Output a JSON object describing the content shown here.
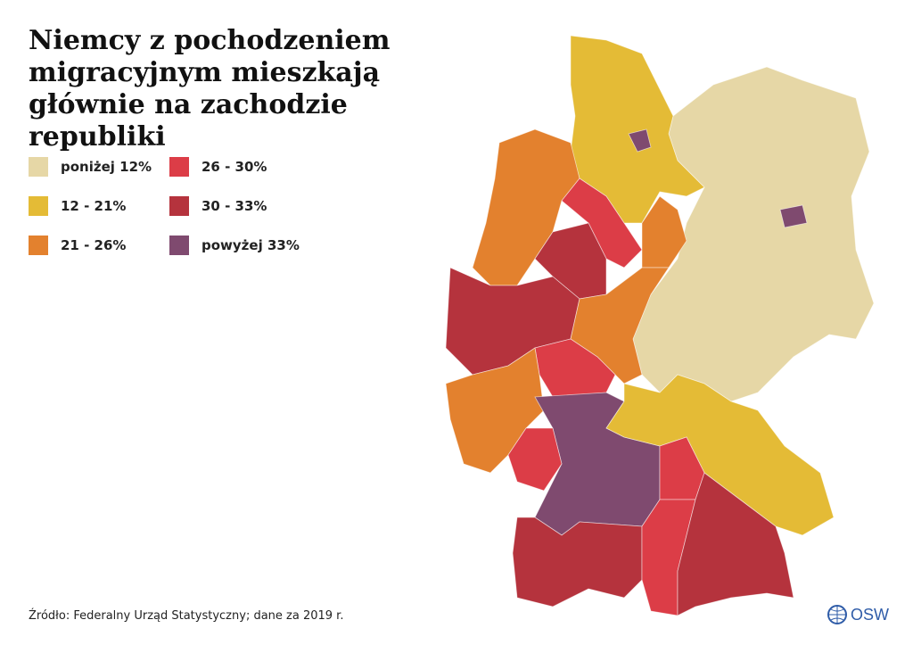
{
  "title": "Niemcy z pochodzeniem migracyjnym mieszkają głównie na zachodzie republiki",
  "legend": [
    {
      "label": "poniżej 12%",
      "color": "#e6d7a6"
    },
    {
      "label": "12 - 21%",
      "color": "#e4bb36"
    },
    {
      "label": "21 - 26%",
      "color": "#e3812e"
    },
    {
      "label": "26 - 30%",
      "color": "#dc3d47"
    },
    {
      "label": "30 - 33%",
      "color": "#b5333d"
    },
    {
      "label": "powyżej 33%",
      "color": "#7f4a6f"
    }
  ],
  "source": "Źródło: Federalny Urząd Statystyczny; dane za 2019 r.",
  "logo": "OSW"
}
